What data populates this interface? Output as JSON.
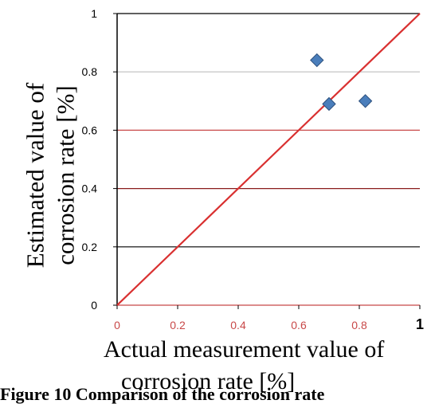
{
  "chart_data": {
    "type": "scatter",
    "title": "",
    "xlabel_lines": [
      "Actual measurement value of",
      "corrosion rate [%]"
    ],
    "ylabel_lines": [
      "Estimated value of",
      "corrosion rate  [%]"
    ],
    "xlim": [
      0,
      1
    ],
    "ylim": [
      0,
      1
    ],
    "xticks": [
      "0",
      "0.2",
      "0.4",
      "0.6",
      "0.8",
      "1"
    ],
    "yticks": [
      "0",
      "0.2",
      "0.4",
      "0.6",
      "0.8",
      "1"
    ],
    "grid": true,
    "series": [
      {
        "x": [
          0.66,
          0.7,
          0.82
        ],
        "y": [
          0.84,
          0.69,
          0.7
        ],
        "marker": "diamond",
        "color": "#4a7ebb"
      }
    ],
    "reference_line": {
      "x": [
        0,
        1
      ],
      "y": [
        0,
        1
      ],
      "color": "#d93030"
    }
  },
  "caption": "Figure 10 Comparison of the corrosion rate"
}
